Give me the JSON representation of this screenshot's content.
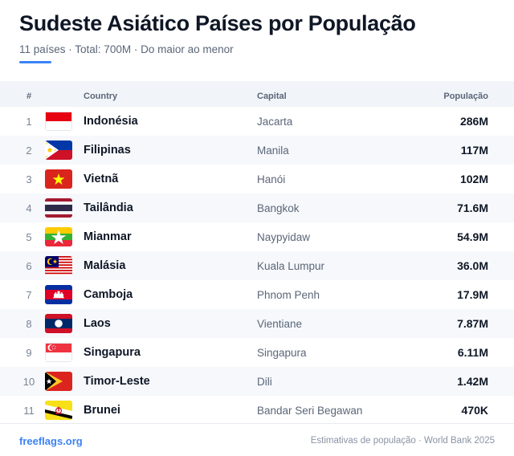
{
  "header": {
    "title": "Sudeste Asiático Países por População",
    "subtitle": "11 países · Total: 700M · Do maior ao menor"
  },
  "table": {
    "columns": {
      "rank": "#",
      "country": "Country",
      "capital": "Capital",
      "population": "População"
    },
    "rows": [
      {
        "rank": "1",
        "country": "Indonésia",
        "capital": "Jacarta",
        "population": "286M",
        "flag": "indonesia-flag"
      },
      {
        "rank": "2",
        "country": "Filipinas",
        "capital": "Manila",
        "population": "117M",
        "flag": "philippines-flag"
      },
      {
        "rank": "3",
        "country": "Vietnã",
        "capital": "Hanói",
        "population": "102M",
        "flag": "vietnam-flag"
      },
      {
        "rank": "4",
        "country": "Tailândia",
        "capital": "Bangkok",
        "population": "71.6M",
        "flag": "thailand-flag"
      },
      {
        "rank": "5",
        "country": "Mianmar",
        "capital": "Naypyidaw",
        "population": "54.9M",
        "flag": "myanmar-flag"
      },
      {
        "rank": "6",
        "country": "Malásia",
        "capital": "Kuala Lumpur",
        "population": "36.0M",
        "flag": "malaysia-flag"
      },
      {
        "rank": "7",
        "country": "Camboja",
        "capital": "Phnom Penh",
        "population": "17.9M",
        "flag": "cambodia-flag"
      },
      {
        "rank": "8",
        "country": "Laos",
        "capital": "Vientiane",
        "population": "7.87M",
        "flag": "laos-flag"
      },
      {
        "rank": "9",
        "country": "Singapura",
        "capital": "Singapura",
        "population": "6.11M",
        "flag": "singapore-flag"
      },
      {
        "rank": "10",
        "country": "Timor-Leste",
        "capital": "Dili",
        "population": "1.42M",
        "flag": "timor-leste-flag"
      },
      {
        "rank": "11",
        "country": "Brunei",
        "capital": "Bandar Seri Begawan",
        "population": "470K",
        "flag": "brunei-flag"
      }
    ]
  },
  "footer": {
    "brand": "freeflags.org",
    "source": "Estimativas de população · World Bank 2025"
  },
  "colors": {
    "accent": "#3b82f6",
    "row_alt": "#f6f8fb",
    "header_bg": "#f1f5f9"
  }
}
